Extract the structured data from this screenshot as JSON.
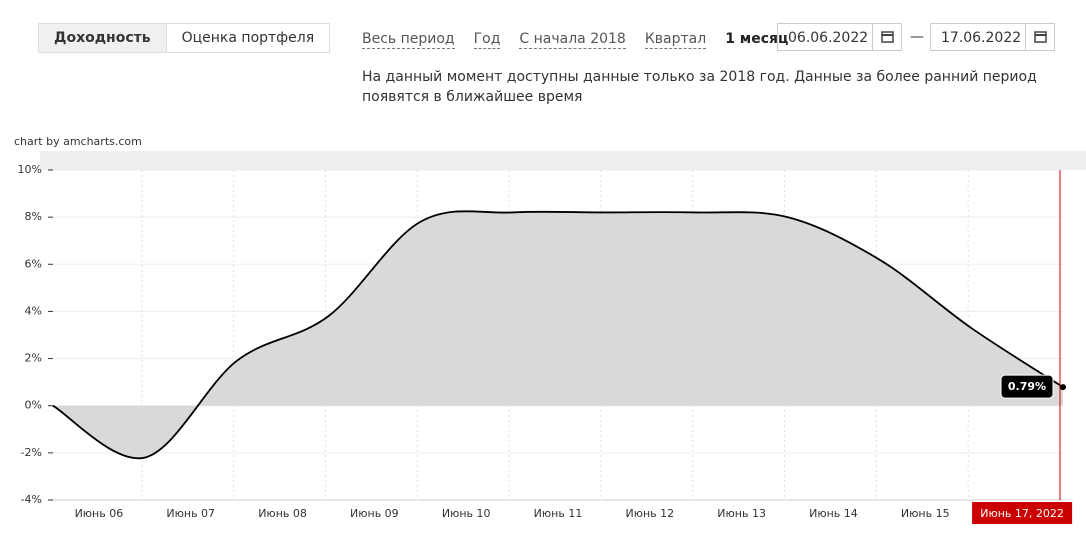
{
  "tabs": [
    "Доходность",
    "Оценка портфеля"
  ],
  "periods": [
    "Весь период",
    "Год",
    "С начала 2018",
    "Квартал",
    "1 месяц"
  ],
  "date_from": "06.06.2022",
  "date_separator": "—",
  "date_to": "17.06.2022",
  "notice": "На данный момент доступны данные только за 2018 год. Данные за более ранний период появятся в ближайшее время",
  "credit": "chart by amcharts.com",
  "chart_data": {
    "type": "area",
    "categories": [
      null,
      "Июнь 06",
      "Июнь 07",
      "Июнь 08",
      "Июнь 09",
      "Июнь 10",
      "Июнь 11",
      "Июнь 12",
      "Июнь 13",
      "Июнь 14",
      "Июнь 15",
      "Июнь 17, 2022"
    ],
    "values": [
      0,
      -2.2,
      1.9,
      3.8,
      7.8,
      8.2,
      8.2,
      8.2,
      8.0,
      6.2,
      3.3,
      0.79
    ],
    "value_labels": [
      null,
      null,
      null,
      null,
      null,
      null,
      null,
      null,
      null,
      null,
      null,
      "0.79%"
    ],
    "color": "#000000",
    "fill": "#d9d9d9",
    "ylim": [
      -4,
      10
    ],
    "yticks": [
      {
        "value": -4,
        "label": "-4%"
      },
      {
        "value": -2,
        "label": "-2%"
      },
      {
        "value": 0,
        "label": "0%"
      },
      {
        "value": 2,
        "label": "2%"
      },
      {
        "value": 4,
        "label": "4%"
      },
      {
        "value": 6,
        "label": "6%"
      },
      {
        "value": 8,
        "label": "8%"
      },
      {
        "value": 10,
        "label": "10%"
      }
    ],
    "grid": true
  }
}
